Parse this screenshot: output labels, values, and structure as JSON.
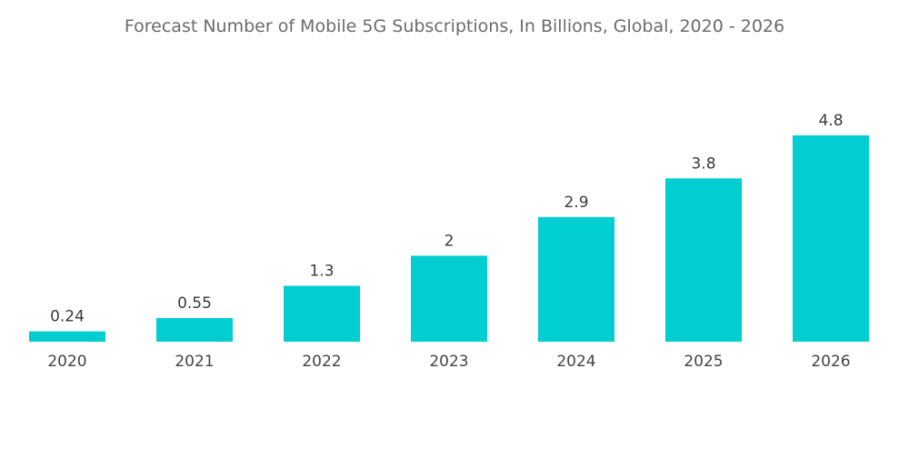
{
  "chart_data": {
    "type": "bar",
    "title": "Forecast Number of Mobile 5G Subscriptions, In Billions, Global, 2020 - 2026",
    "xlabel": "",
    "ylabel": "",
    "categories": [
      "2020",
      "2021",
      "2022",
      "2023",
      "2024",
      "2025",
      "2026"
    ],
    "values": [
      0.24,
      0.55,
      1.3,
      2,
      2.9,
      3.8,
      4.8
    ],
    "value_labels": [
      "0.24",
      "0.55",
      "1.3",
      "2",
      "2.9",
      "3.8",
      "4.8"
    ],
    "ylim": [
      0,
      4.8
    ],
    "grid": false,
    "legend": "none",
    "bar_color": "#00CED1"
  }
}
